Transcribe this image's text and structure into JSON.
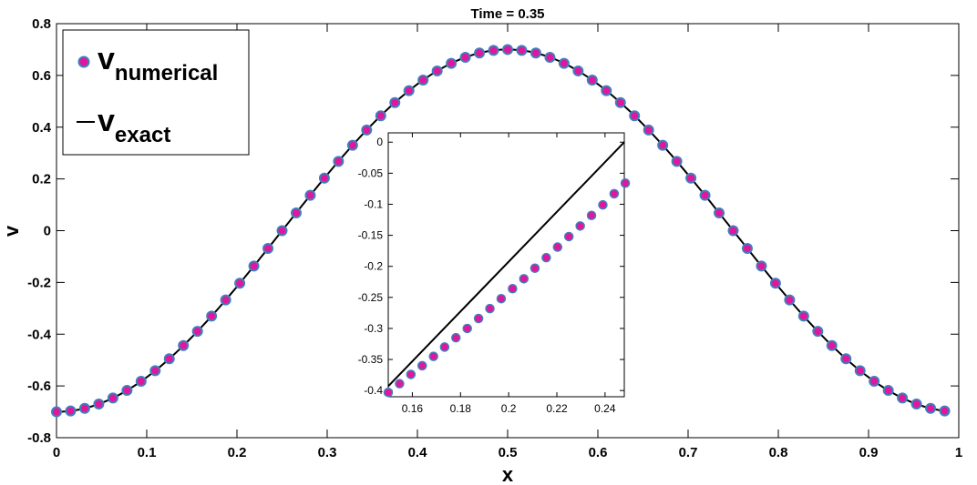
{
  "chart_data": [
    {
      "type": "line",
      "title": "Time = 0.35",
      "xlabel": "x",
      "ylabel": "v",
      "xlim": [
        0,
        1
      ],
      "ylim": [
        -0.8,
        0.8
      ],
      "xticks": [
        0,
        0.1,
        0.2,
        0.3,
        0.4,
        0.5,
        0.6,
        0.7,
        0.8,
        0.9,
        1
      ],
      "xtick_labels": [
        "0",
        "0.1",
        "0.2",
        "0.3",
        "0.4",
        "0.5",
        "0.6",
        "0.7",
        "0.8",
        "0.9",
        "1"
      ],
      "yticks": [
        -0.8,
        -0.6,
        -0.4,
        -0.2,
        0,
        0.2,
        0.4,
        0.6,
        0.8
      ],
      "ytick_labels": [
        "-0.8",
        "-0.6",
        "-0.4",
        "-0.2",
        "0",
        "0.2",
        "0.4",
        "0.6",
        "0.8"
      ],
      "grid": false,
      "legend_position": "top-left",
      "series": [
        {
          "name": "v_numerical",
          "legend_main": "v",
          "legend_sub": "numerical",
          "style": "markers",
          "marker_fill": "#e0179a",
          "marker_edge": "#3f7fbf",
          "function": "-0.7*cos(2*pi*x)",
          "x_start": 0,
          "x_end": 0.984375,
          "count": 64
        },
        {
          "name": "v_exact",
          "legend_main": "v",
          "legend_sub": "exact",
          "style": "line",
          "color": "#000000",
          "function": "-0.7*cos(2*pi*x)",
          "x_start": 0,
          "x_end": 0.984375
        }
      ]
    },
    {
      "type": "line",
      "role": "inset",
      "title": "",
      "xlim": [
        0.15,
        0.248
      ],
      "ylim": [
        -0.41,
        0.015
      ],
      "xticks": [
        0.16,
        0.18,
        0.2,
        0.22,
        0.24
      ],
      "xtick_labels": [
        "0.16",
        "0.18",
        "0.2",
        "0.22",
        "0.24"
      ],
      "yticks": [
        -0.4,
        -0.35,
        -0.3,
        -0.25,
        -0.2,
        -0.15,
        -0.1,
        -0.05,
        0
      ],
      "ytick_labels": [
        "-0.4",
        "-0.35",
        "-0.3",
        "-0.25",
        "-0.2",
        "-0.15",
        "-0.1",
        "-0.05",
        "0"
      ],
      "series": [
        {
          "name": "v_numerical",
          "style": "markers",
          "marker_fill": "#e0179a",
          "marker_edge": "#3f7fbf",
          "x": [
            0.15,
            0.1547,
            0.1594,
            0.1641,
            0.1688,
            0.1734,
            0.1781,
            0.1828,
            0.1875,
            0.1922,
            0.1969,
            0.2016,
            0.2063,
            0.2109,
            0.2156,
            0.2203,
            0.225,
            0.2297,
            0.2344,
            0.2391,
            0.2438,
            0.2484
          ],
          "y": [
            -0.403,
            -0.389,
            -0.374,
            -0.36,
            -0.345,
            -0.33,
            -0.315,
            -0.3,
            -0.284,
            -0.268,
            -0.252,
            -0.236,
            -0.22,
            -0.203,
            -0.186,
            -0.169,
            -0.152,
            -0.135,
            -0.118,
            -0.101,
            -0.083,
            -0.066
          ]
        },
        {
          "name": "v_exact",
          "style": "line",
          "color": "#000000",
          "x": [
            0.15,
            0.248
          ],
          "y": [
            -0.393,
            0.0
          ]
        }
      ]
    }
  ]
}
